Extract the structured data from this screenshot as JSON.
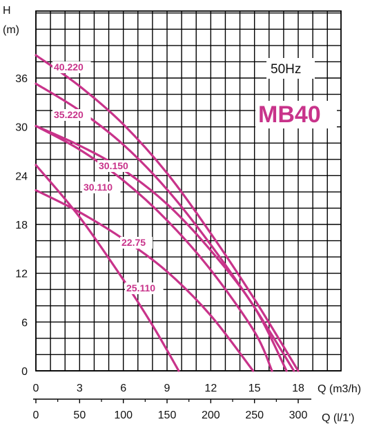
{
  "chart_data": {
    "type": "line",
    "frequency_label": "50Hz",
    "model_label": "MB40",
    "y_axis": {
      "label_line1": "H",
      "label_line2": "(m)",
      "ticks": [
        "0",
        "6",
        "12",
        "18",
        "24",
        "30",
        "36"
      ],
      "ylim": [
        0,
        40
      ]
    },
    "x_axis_primary": {
      "label": "Q (m3/h)",
      "ticks": [
        "0",
        "3",
        "6",
        "9",
        "12",
        "15",
        "18"
      ],
      "xlim": [
        0,
        21
      ]
    },
    "x_axis_secondary": {
      "label": "Q (l/1')",
      "ticks": [
        "0",
        "50",
        "100",
        "150",
        "200",
        "250",
        "300"
      ]
    },
    "grid": true,
    "series_color": "#c8338a",
    "series": [
      {
        "name": "40.220",
        "x": [
          0,
          3,
          6,
          9,
          12,
          15,
          18
        ],
        "y": [
          38.8,
          35.0,
          30.3,
          24.3,
          16.9,
          8.8,
          0
        ]
      },
      {
        "name": "35.220",
        "x": [
          0,
          3,
          6,
          9,
          12,
          15,
          17.7
        ],
        "y": [
          35.3,
          32.0,
          27.8,
          22.3,
          15.5,
          7.8,
          0
        ]
      },
      {
        "name": "30.150",
        "x": [
          0,
          3,
          6,
          9,
          12,
          15,
          17.2
        ],
        "y": [
          30.1,
          27.7,
          24.7,
          20.5,
          14.8,
          7.8,
          0
        ]
      },
      {
        "name": "30.110",
        "x": [
          0,
          3,
          6,
          9,
          12,
          15,
          16.2
        ],
        "y": [
          30.1,
          27.2,
          23.4,
          18.5,
          12.4,
          4.8,
          0
        ]
      },
      {
        "name": "22.75",
        "x": [
          0,
          3,
          6,
          9,
          12,
          14.9
        ],
        "y": [
          22.2,
          19.5,
          16.2,
          12.2,
          6.8,
          0
        ]
      },
      {
        "name": "25.110",
        "x": [
          0,
          3,
          6,
          8,
          9.8
        ],
        "y": [
          25.3,
          18.9,
          11.2,
          5.6,
          0
        ]
      }
    ]
  }
}
